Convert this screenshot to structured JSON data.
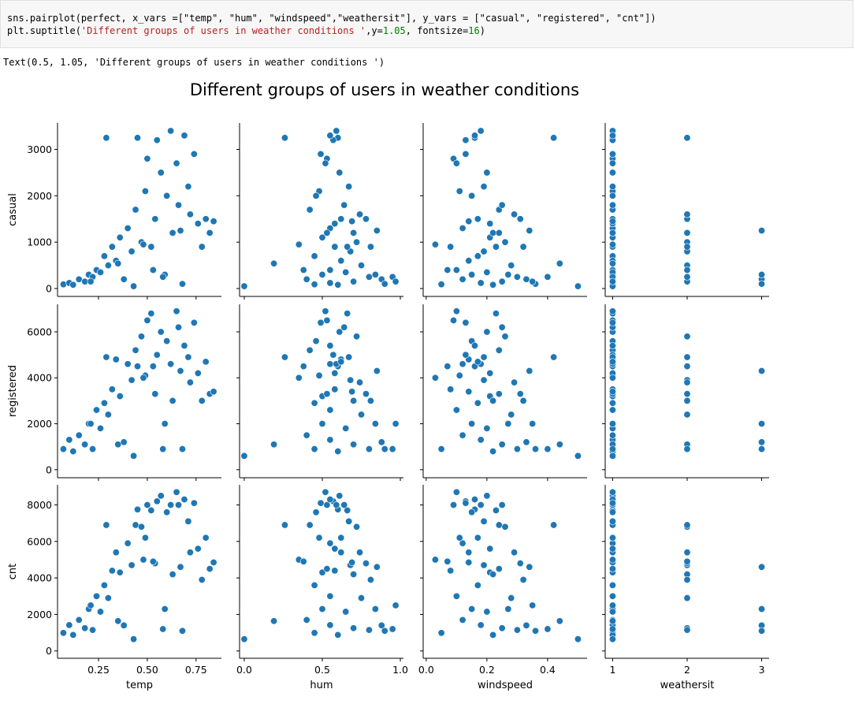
{
  "code": {
    "line1": "sns.pairplot(perfect, x_vars =[\"temp\", \"hum\", \"windspeed\",\"weathersit\"], y_vars = [\"casual\", \"registered\", \"cnt\"])",
    "line2_prefix": "plt.suptitle(",
    "line2_string": "'Different groups of users in weather conditions '",
    "line2_mid": ",y=",
    "line2_y": "1.05",
    "line2_mid2": ", fontsize=",
    "line2_fs": "16",
    "line2_suffix": ")"
  },
  "output_text": "Text(0.5, 1.05, 'Different groups of users in weather conditions ')",
  "colors": {
    "point": "#1f77b4",
    "point_edge": "#ffffff",
    "axis": "#000000"
  },
  "chart_data": {
    "type": "scatter",
    "title": "Different groups of users in weather conditions",
    "x_vars": [
      {
        "name": "temp",
        "label": "temp",
        "range": [
          0.04,
          0.88
        ],
        "ticks": [
          0.25,
          0.5,
          0.75
        ],
        "tick_labels": [
          "0.25",
          "0.50",
          "0.75"
        ]
      },
      {
        "name": "hum",
        "label": "hum",
        "range": [
          -0.03,
          1.02
        ],
        "ticks": [
          0.0,
          0.5,
          1.0
        ],
        "tick_labels": [
          "0.0",
          "0.5",
          "1.0"
        ]
      },
      {
        "name": "windspeed",
        "label": "windspeed",
        "range": [
          -0.01,
          0.53
        ],
        "ticks": [
          0.0,
          0.2,
          0.4
        ],
        "tick_labels": [
          "0.0",
          "0.2",
          "0.4"
        ]
      },
      {
        "name": "weathersit",
        "label": "weathersit",
        "range": [
          0.9,
          3.1
        ],
        "ticks": [
          1,
          2,
          3
        ],
        "tick_labels": [
          "1",
          "2",
          "3"
        ]
      }
    ],
    "y_vars": [
      {
        "name": "casual",
        "label": "casual",
        "range": [
          -170,
          3570
        ],
        "ticks": [
          0,
          1000,
          2000,
          3000
        ],
        "tick_labels": [
          "0",
          "1000",
          "2000",
          "3000"
        ]
      },
      {
        "name": "registered",
        "label": "registered",
        "range": [
          -350,
          7200
        ],
        "ticks": [
          0,
          2000,
          4000,
          6000
        ],
        "tick_labels": [
          "0",
          "2000",
          "4000",
          "6000"
        ]
      },
      {
        "name": "cnt",
        "label": "cnt",
        "range": [
          -400,
          9100
        ],
        "ticks": [
          0,
          2000,
          4000,
          6000,
          8000
        ],
        "tick_labels": [
          "0",
          "2000",
          "4000",
          "6000",
          "8000"
        ]
      }
    ],
    "samples": [
      {
        "temp": 0.07,
        "hum": 0.45,
        "windspeed": 0.05,
        "weathersit": 1,
        "casual": 90,
        "registered": 900,
        "cnt": 990
      },
      {
        "temp": 0.1,
        "hum": 0.55,
        "windspeed": 0.18,
        "weathersit": 1,
        "casual": 120,
        "registered": 1300,
        "cnt": 1420
      },
      {
        "temp": 0.12,
        "hum": 0.6,
        "windspeed": 0.22,
        "weathersit": 1,
        "casual": 80,
        "registered": 800,
        "cnt": 880
      },
      {
        "temp": 0.15,
        "hum": 0.4,
        "windspeed": 0.12,
        "weathersit": 1,
        "casual": 200,
        "registered": 1500,
        "cnt": 1700
      },
      {
        "temp": 0.18,
        "hum": 0.7,
        "windspeed": 0.25,
        "weathersit": 2,
        "casual": 150,
        "registered": 1100,
        "cnt": 1250
      },
      {
        "temp": 0.2,
        "hum": 0.5,
        "windspeed": 0.15,
        "weathersit": 1,
        "casual": 300,
        "registered": 2000,
        "cnt": 2300
      },
      {
        "temp": 0.22,
        "hum": 0.8,
        "windspeed": 0.3,
        "weathersit": 2,
        "casual": 250,
        "registered": 900,
        "cnt": 1150
      },
      {
        "temp": 0.24,
        "hum": 0.55,
        "windspeed": 0.1,
        "weathersit": 1,
        "casual": 400,
        "registered": 2600,
        "cnt": 3000
      },
      {
        "temp": 0.26,
        "hum": 0.65,
        "windspeed": 0.2,
        "weathersit": 1,
        "casual": 350,
        "registered": 1800,
        "cnt": 2150
      },
      {
        "temp": 0.28,
        "hum": 0.45,
        "windspeed": 0.17,
        "weathersit": 1,
        "casual": 700,
        "registered": 2900,
        "cnt": 3600
      },
      {
        "temp": 0.3,
        "hum": 0.75,
        "windspeed": 0.28,
        "weathersit": 2,
        "casual": 500,
        "registered": 2400,
        "cnt": 2900
      },
      {
        "temp": 0.32,
        "hum": 0.58,
        "windspeed": 0.08,
        "weathersit": 1,
        "casual": 900,
        "registered": 3500,
        "cnt": 4400
      },
      {
        "temp": 0.34,
        "hum": 0.62,
        "windspeed": 0.14,
        "weathersit": 1,
        "casual": 600,
        "registered": 4800,
        "cnt": 5400
      },
      {
        "temp": 0.36,
        "hum": 0.5,
        "windspeed": 0.21,
        "weathersit": 1,
        "casual": 1100,
        "registered": 3200,
        "cnt": 4300
      },
      {
        "temp": 0.38,
        "hum": 0.88,
        "windspeed": 0.33,
        "weathersit": 3,
        "casual": 200,
        "registered": 1200,
        "cnt": 1400
      },
      {
        "temp": 0.4,
        "hum": 0.55,
        "windspeed": 0.12,
        "weathersit": 1,
        "casual": 1300,
        "registered": 4600,
        "cnt": 5900
      },
      {
        "temp": 0.42,
        "hum": 0.68,
        "windspeed": 0.19,
        "weathersit": 2,
        "casual": 800,
        "registered": 3900,
        "cnt": 4700
      },
      {
        "temp": 0.44,
        "hum": 0.42,
        "windspeed": 0.24,
        "weathersit": 1,
        "casual": 1700,
        "registered": 5200,
        "cnt": 6900
      },
      {
        "temp": 0.45,
        "hum": 0.6,
        "windspeed": 0.16,
        "weathersit": 1,
        "casual": 3250,
        "registered": 4500,
        "cnt": 7750
      },
      {
        "temp": 0.47,
        "hum": 0.72,
        "windspeed": 0.26,
        "weathersit": 2,
        "casual": 1000,
        "registered": 5800,
        "cnt": 6800
      },
      {
        "temp": 0.49,
        "hum": 0.48,
        "windspeed": 0.11,
        "weathersit": 1,
        "casual": 2100,
        "registered": 4100,
        "cnt": 6200
      },
      {
        "temp": 0.5,
        "hum": 0.53,
        "windspeed": 0.09,
        "weathersit": 1,
        "casual": 2800,
        "registered": 6500,
        "cnt": 8000
      },
      {
        "temp": 0.52,
        "hum": 0.66,
        "windspeed": 0.23,
        "weathersit": 1,
        "casual": 900,
        "registered": 6800,
        "cnt": 7700
      },
      {
        "temp": 0.54,
        "hum": 0.78,
        "windspeed": 0.31,
        "weathersit": 2,
        "casual": 1500,
        "registered": 3300,
        "cnt": 4800
      },
      {
        "temp": 0.55,
        "hum": 0.57,
        "windspeed": 0.13,
        "weathersit": 1,
        "casual": 3200,
        "registered": 5000,
        "cnt": 8200
      },
      {
        "temp": 0.57,
        "hum": 0.61,
        "windspeed": 0.2,
        "weathersit": 1,
        "casual": 2500,
        "registered": 6000,
        "cnt": 8500
      },
      {
        "temp": 0.59,
        "hum": 0.84,
        "windspeed": 0.27,
        "weathersit": 3,
        "casual": 300,
        "registered": 2000,
        "cnt": 2300
      },
      {
        "temp": 0.6,
        "hum": 0.46,
        "windspeed": 0.15,
        "weathersit": 1,
        "casual": 2000,
        "registered": 5600,
        "cnt": 7600
      },
      {
        "temp": 0.62,
        "hum": 0.59,
        "windspeed": 0.18,
        "weathersit": 1,
        "casual": 3400,
        "registered": 4600,
        "cnt": 8000
      },
      {
        "temp": 0.63,
        "hum": 0.7,
        "windspeed": 0.22,
        "weathersit": 2,
        "casual": 1200,
        "registered": 3000,
        "cnt": 4200
      },
      {
        "temp": 0.65,
        "hum": 0.52,
        "windspeed": 0.1,
        "weathersit": 1,
        "casual": 2700,
        "registered": 6900,
        "cnt": 8700
      },
      {
        "temp": 0.66,
        "hum": 0.64,
        "windspeed": 0.25,
        "weathersit": 1,
        "casual": 1800,
        "registered": 6200,
        "cnt": 8000
      },
      {
        "temp": 0.68,
        "hum": 0.9,
        "windspeed": 0.36,
        "weathersit": 3,
        "casual": 100,
        "registered": 900,
        "cnt": 1100
      },
      {
        "temp": 0.69,
        "hum": 0.55,
        "windspeed": 0.16,
        "weathersit": 1,
        "casual": 3300,
        "registered": 5400,
        "cnt": 8300
      },
      {
        "temp": 0.71,
        "hum": 0.67,
        "windspeed": 0.19,
        "weathersit": 1,
        "casual": 2200,
        "registered": 4900,
        "cnt": 7100
      },
      {
        "temp": 0.72,
        "hum": 0.74,
        "windspeed": 0.29,
        "weathersit": 2,
        "casual": 1600,
        "registered": 3800,
        "cnt": 5400
      },
      {
        "temp": 0.74,
        "hum": 0.49,
        "windspeed": 0.13,
        "weathersit": 1,
        "casual": 2900,
        "registered": 6400,
        "cnt": 8100
      },
      {
        "temp": 0.76,
        "hum": 0.58,
        "windspeed": 0.21,
        "weathersit": 1,
        "casual": 1400,
        "registered": 4200,
        "cnt": 5600
      },
      {
        "temp": 0.78,
        "hum": 0.81,
        "windspeed": 0.32,
        "weathersit": 2,
        "casual": 900,
        "registered": 3000,
        "cnt": 3900
      },
      {
        "temp": 0.8,
        "hum": 0.62,
        "windspeed": 0.17,
        "weathersit": 1,
        "casual": 1500,
        "registered": 4700,
        "cnt": 6200
      },
      {
        "temp": 0.82,
        "hum": 0.53,
        "windspeed": 0.24,
        "weathersit": 1,
        "casual": 1200,
        "registered": 3300,
        "cnt": 4500
      },
      {
        "temp": 0.84,
        "hum": 0.69,
        "windspeed": 0.14,
        "weathersit": 1,
        "casual": 1450,
        "registered": 3400,
        "cnt": 4850
      },
      {
        "temp": 0.43,
        "hum": 0.0,
        "windspeed": 0.5,
        "weathersit": 1,
        "casual": 50,
        "registered": 600,
        "cnt": 650
      },
      {
        "temp": 0.35,
        "hum": 0.19,
        "windspeed": 0.44,
        "weathersit": 1,
        "casual": 540,
        "registered": 1100,
        "cnt": 1640
      },
      {
        "temp": 0.29,
        "hum": 0.26,
        "windspeed": 0.42,
        "weathersit": 2,
        "casual": 3250,
        "registered": 4900,
        "cnt": 6900
      },
      {
        "temp": 0.58,
        "hum": 0.95,
        "windspeed": 0.4,
        "weathersit": 1,
        "casual": 250,
        "registered": 900,
        "cnt": 1200
      },
      {
        "temp": 0.21,
        "hum": 0.97,
        "windspeed": 0.35,
        "weathersit": 1,
        "casual": 150,
        "registered": 2000,
        "cnt": 2500
      },
      {
        "temp": 0.48,
        "hum": 0.35,
        "windspeed": 0.03,
        "weathersit": 1,
        "casual": 950,
        "registered": 4000,
        "cnt": 5000
      },
      {
        "temp": 0.53,
        "hum": 0.38,
        "windspeed": 0.07,
        "weathersit": 2,
        "casual": 400,
        "registered": 4500,
        "cnt": 4900
      },
      {
        "temp": 0.67,
        "hum": 0.85,
        "windspeed": 0.34,
        "weathersit": 3,
        "casual": 1250,
        "registered": 4300,
        "cnt": 4600
      }
    ]
  }
}
